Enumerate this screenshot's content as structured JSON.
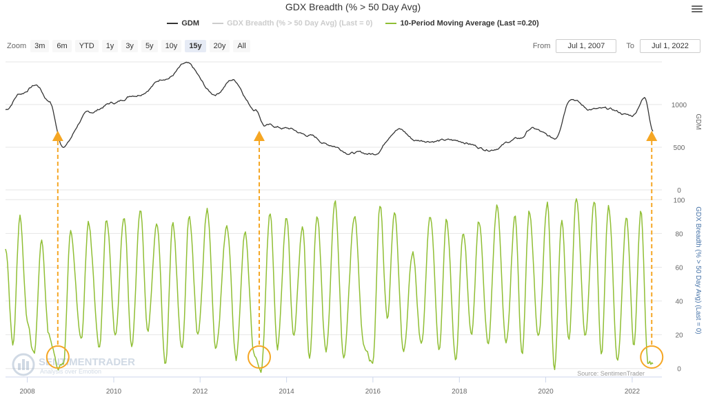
{
  "title": "GDX Breadth (% > 50 Day Avg)",
  "menu_icon": "hamburger-menu-icon",
  "legend": [
    {
      "name": "GDM",
      "color": "#333333"
    },
    {
      "name": "GDX Breadth (% > 50 Day Avg) (Last = 0)",
      "color": "#cccccc"
    },
    {
      "name": "10-Period Moving Average (Last =0.20)",
      "color": "#8fbe33"
    }
  ],
  "zoom": {
    "label": "Zoom",
    "buttons": [
      "3m",
      "6m",
      "YTD",
      "1y",
      "3y",
      "5y",
      "10y",
      "15y",
      "20y",
      "All"
    ],
    "active": "15y"
  },
  "range": {
    "from_label": "From",
    "from_value": "Jul 1, 2007",
    "to_label": "To",
    "to_value": "Jul 1, 2022"
  },
  "watermark": {
    "name": "SENTIMENTRADER",
    "tagline": "Analysis over Emotion"
  },
  "source": "Source: SentimenTrader",
  "colors": {
    "gdm": "#333333",
    "ma": "#8fbe33",
    "arrow": "#f5a623",
    "axis2_title": "#4572a7"
  },
  "chart_data": [
    {
      "type": "line",
      "series": [
        {
          "name": "GDM",
          "x": [
            "2007-07-01",
            "2007-11-01",
            "2008-03-15",
            "2008-07-01",
            "2008-10-25",
            "2009-06-01",
            "2010-01-01",
            "2010-07-01",
            "2011-04-01",
            "2011-09-01",
            "2012-05-01",
            "2012-10-01",
            "2013-04-15",
            "2013-07-01",
            "2014-01-01",
            "2014-07-01",
            "2015-01-01",
            "2015-07-01",
            "2016-01-01",
            "2016-08-01",
            "2017-01-01",
            "2017-09-01",
            "2018-01-01",
            "2018-09-01",
            "2019-06-01",
            "2019-09-01",
            "2020-03-15",
            "2020-08-01",
            "2021-01-01",
            "2021-06-01",
            "2022-01-01",
            "2022-04-15",
            "2022-07-01"
          ],
          "values": [
            940,
            1130,
            1230,
            1050,
            520,
            900,
            1020,
            1120,
            1320,
            1470,
            1120,
            1290,
            950,
            760,
            720,
            640,
            530,
            440,
            420,
            720,
            580,
            580,
            570,
            480,
            600,
            720,
            600,
            1090,
            950,
            940,
            870,
            1080,
            700
          ]
        }
      ],
      "ylim": [
        0,
        1500
      ],
      "yticks": [
        0,
        500,
        1000
      ],
      "ylabel": "GDM"
    },
    {
      "type": "line",
      "series": [
        {
          "name": "10-Period Moving Average (Last =0.20)",
          "x": [
            "2007-07-01",
            "2007-09-01",
            "2007-11-01",
            "2008-01-01",
            "2008-03-01",
            "2008-05-01",
            "2008-07-01",
            "2008-09-15",
            "2008-11-01",
            "2009-01-01",
            "2009-04-01",
            "2009-06-01",
            "2009-09-01",
            "2009-11-01",
            "2010-01-15",
            "2010-04-01",
            "2010-06-01",
            "2010-08-15",
            "2010-10-15",
            "2011-01-01",
            "2011-03-15",
            "2011-05-15",
            "2011-08-01",
            "2011-10-01",
            "2011-12-15",
            "2012-03-01",
            "2012-05-15",
            "2012-08-15",
            "2012-11-01",
            "2013-01-15",
            "2013-04-01",
            "2013-06-01",
            "2013-08-15",
            "2013-10-15",
            "2014-01-01",
            "2014-03-01",
            "2014-05-15",
            "2014-07-15",
            "2014-09-15",
            "2014-12-01",
            "2015-02-15",
            "2015-05-01",
            "2015-08-01",
            "2015-10-15",
            "2016-01-01",
            "2016-03-01",
            "2016-05-01",
            "2016-07-01",
            "2016-09-15",
            "2016-12-01",
            "2017-02-15",
            "2017-05-01",
            "2017-07-15",
            "2017-09-15",
            "2017-12-01",
            "2018-02-01",
            "2018-04-15",
            "2018-06-15",
            "2018-09-01",
            "2018-11-15",
            "2019-02-01",
            "2019-04-15",
            "2019-06-15",
            "2019-08-15",
            "2019-11-01",
            "2020-01-15",
            "2020-03-15",
            "2020-05-15",
            "2020-07-15",
            "2020-09-15",
            "2020-12-01",
            "2021-02-15",
            "2021-04-15",
            "2021-06-15",
            "2021-09-01",
            "2021-11-15",
            "2022-01-15",
            "2022-03-15",
            "2022-05-15",
            "2022-07-01"
          ],
          "values": [
            70,
            15,
            90,
            30,
            10,
            75,
            20,
            2,
            5,
            80,
            15,
            85,
            10,
            90,
            20,
            90,
            15,
            98,
            25,
            90,
            5,
            85,
            10,
            90,
            20,
            95,
            10,
            85,
            5,
            80,
            8,
            2,
            95,
            10,
            90,
            20,
            85,
            5,
            90,
            10,
            95,
            5,
            90,
            15,
            5,
            98,
            30,
            95,
            10,
            70,
            15,
            90,
            10,
            85,
            5,
            80,
            20,
            85,
            10,
            95,
            15,
            90,
            5,
            90,
            20,
            98,
            2,
            90,
            15,
            98,
            20,
            98,
            10,
            95,
            5,
            90,
            15,
            93,
            2,
            0.2
          ]
        }
      ],
      "ylim": [
        -5,
        105
      ],
      "yticks": [
        0,
        20,
        40,
        60,
        80,
        100
      ],
      "ylabel": "GDX Breadth (% > 50 Day Avg) (Last = 0)"
    }
  ],
  "x_axis_ticks": [
    "2008",
    "2010",
    "2012",
    "2014",
    "2016",
    "2018",
    "2020",
    "2022"
  ],
  "signals": [
    "2008-09-15",
    "2013-05-15",
    "2022-06-15"
  ]
}
